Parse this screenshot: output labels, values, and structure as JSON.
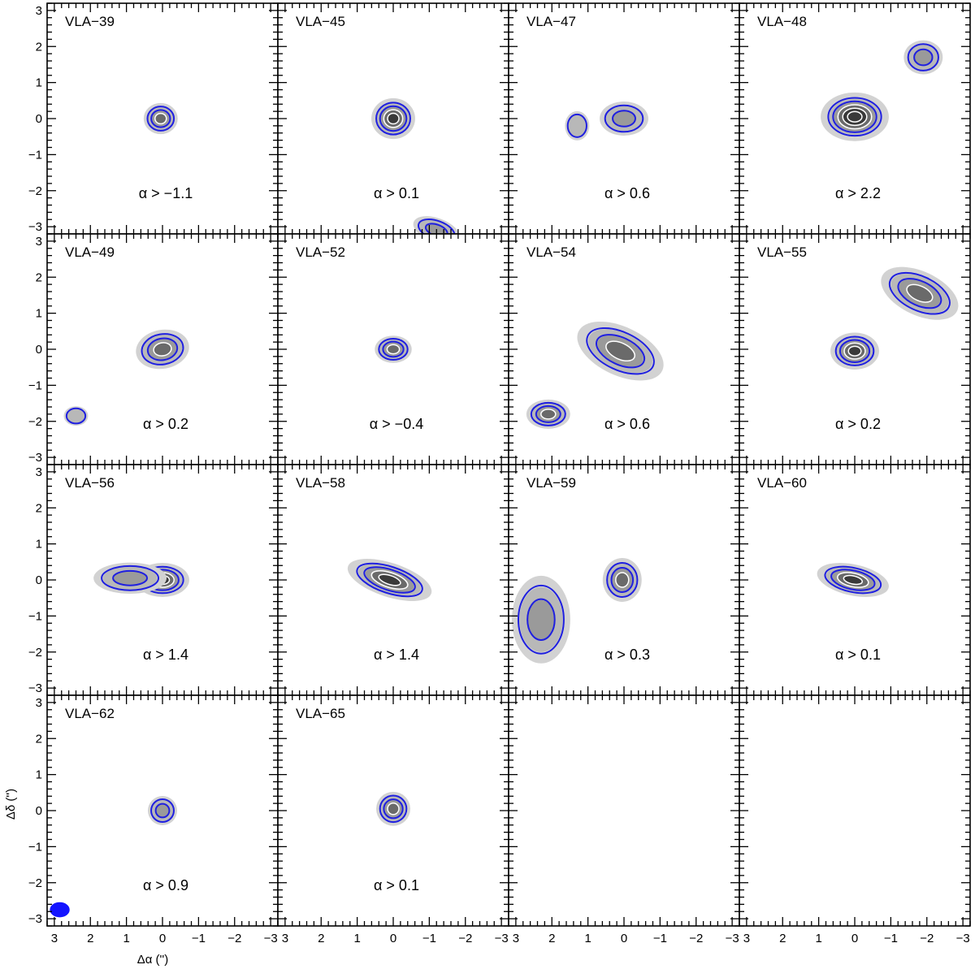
{
  "chart_data": {
    "type": "contour",
    "grid_rows": 4,
    "grid_cols": 4,
    "xlabel": "Δα ('')",
    "ylabel": "Δδ ('')",
    "xlim": [
      3.2,
      -3.2
    ],
    "ylim": [
      -3.2,
      3.2
    ],
    "x_ticks": [
      3,
      2,
      1,
      0,
      -1,
      -2,
      -3
    ],
    "y_ticks": [
      -3,
      -2,
      -1,
      0,
      1,
      2,
      3
    ],
    "colors": {
      "contour": "#1f1fe0",
      "fill_light": "#d2d2d2",
      "fill_mid": "#9a9a9a",
      "fill_dark": "#3a3a3a",
      "beam": "#1414ff"
    },
    "beam": {
      "x": 2.85,
      "y": -2.75,
      "major": 0.55,
      "minor": 0.42
    },
    "panels": [
      {
        "name": "VLA−39",
        "alpha_label": "α > −1.1",
        "sources": [
          {
            "x": 0.05,
            "y": 0.0,
            "rx": 0.35,
            "ry": 0.32,
            "levels": 3,
            "angle": 0
          }
        ]
      },
      {
        "name": "VLA−45",
        "alpha_label": "α > 0.1",
        "sources": [
          {
            "x": 0.0,
            "y": 0.0,
            "rx": 0.45,
            "ry": 0.42,
            "levels": 4,
            "angle": 0
          },
          {
            "x": -1.2,
            "y": -3.1,
            "rx": 0.5,
            "ry": 0.25,
            "levels": 2,
            "angle": -20
          }
        ]
      },
      {
        "name": "VLA−47",
        "alpha_label": "α > 0.6",
        "sources": [
          {
            "x": 0.0,
            "y": 0.0,
            "rx": 0.5,
            "ry": 0.35,
            "levels": 2,
            "angle": 0
          },
          {
            "x": 1.3,
            "y": -0.2,
            "rx": 0.25,
            "ry": 0.3,
            "levels": 1,
            "angle": 0
          }
        ]
      },
      {
        "name": "VLA−48",
        "alpha_label": "α > 2.2",
        "sources": [
          {
            "x": 0.0,
            "y": 0.05,
            "rx": 0.7,
            "ry": 0.5,
            "levels": 5,
            "angle": 0
          },
          {
            "x": -1.9,
            "y": 1.7,
            "rx": 0.4,
            "ry": 0.35,
            "levels": 2,
            "angle": 0
          }
        ]
      },
      {
        "name": "VLA−49",
        "alpha_label": "α > 0.2",
        "sources": [
          {
            "x": 0.0,
            "y": 0.0,
            "rx": 0.55,
            "ry": 0.4,
            "levels": 3,
            "angle": 10
          },
          {
            "x": 2.4,
            "y": -1.85,
            "rx": 0.25,
            "ry": 0.2,
            "levels": 1,
            "angle": 0
          }
        ]
      },
      {
        "name": "VLA−52",
        "alpha_label": "α > −0.4",
        "sources": [
          {
            "x": 0.0,
            "y": 0.0,
            "rx": 0.38,
            "ry": 0.28,
            "levels": 3,
            "angle": 0
          }
        ]
      },
      {
        "name": "VLA−54",
        "alpha_label": "α > 0.6",
        "sources": [
          {
            "x": 0.1,
            "y": -0.05,
            "rx": 0.95,
            "ry": 0.5,
            "levels": 3,
            "angle": -25
          },
          {
            "x": 2.1,
            "y": -1.8,
            "rx": 0.45,
            "ry": 0.3,
            "levels": 3,
            "angle": 0
          }
        ]
      },
      {
        "name": "VLA−55",
        "alpha_label": "α > 0.2",
        "sources": [
          {
            "x": 0.0,
            "y": -0.05,
            "rx": 0.5,
            "ry": 0.38,
            "levels": 4,
            "angle": 0
          },
          {
            "x": -1.8,
            "y": 1.55,
            "rx": 0.85,
            "ry": 0.45,
            "levels": 3,
            "angle": -25
          }
        ]
      },
      {
        "name": "VLA−56",
        "alpha_label": "α > 1.4",
        "sources": [
          {
            "x": 0.0,
            "y": 0.0,
            "rx": 0.55,
            "ry": 0.35,
            "levels": 4,
            "angle": 0
          },
          {
            "x": 0.9,
            "y": 0.05,
            "rx": 0.75,
            "ry": 0.32,
            "levels": 2,
            "angle": 0
          }
        ]
      },
      {
        "name": "VLA−58",
        "alpha_label": "α > 1.4",
        "sources": [
          {
            "x": 0.1,
            "y": 0.0,
            "rx": 0.9,
            "ry": 0.35,
            "levels": 4,
            "angle": -18
          }
        ]
      },
      {
        "name": "VLA−59",
        "alpha_label": "α > 0.3",
        "sources": [
          {
            "x": 0.05,
            "y": 0.0,
            "rx": 0.4,
            "ry": 0.45,
            "levels": 3,
            "angle": 0
          },
          {
            "x": 2.3,
            "y": -1.1,
            "rx": 0.6,
            "ry": 0.9,
            "levels": 2,
            "angle": 0
          }
        ]
      },
      {
        "name": "VLA−60",
        "alpha_label": "α > 0.1",
        "sources": [
          {
            "x": 0.05,
            "y": 0.0,
            "rx": 0.75,
            "ry": 0.32,
            "levels": 4,
            "angle": -12
          }
        ]
      },
      {
        "name": "VLA−62",
        "alpha_label": "α > 0.9",
        "sources": [
          {
            "x": 0.0,
            "y": 0.0,
            "rx": 0.3,
            "ry": 0.3,
            "levels": 2,
            "angle": 0
          }
        ]
      },
      {
        "name": "VLA−65",
        "alpha_label": "α > 0.1",
        "sources": [
          {
            "x": 0.0,
            "y": 0.05,
            "rx": 0.35,
            "ry": 0.35,
            "levels": 3,
            "angle": 0
          }
        ]
      },
      {
        "name": "",
        "alpha_label": "",
        "sources": []
      },
      {
        "name": "",
        "alpha_label": "",
        "sources": []
      }
    ]
  }
}
